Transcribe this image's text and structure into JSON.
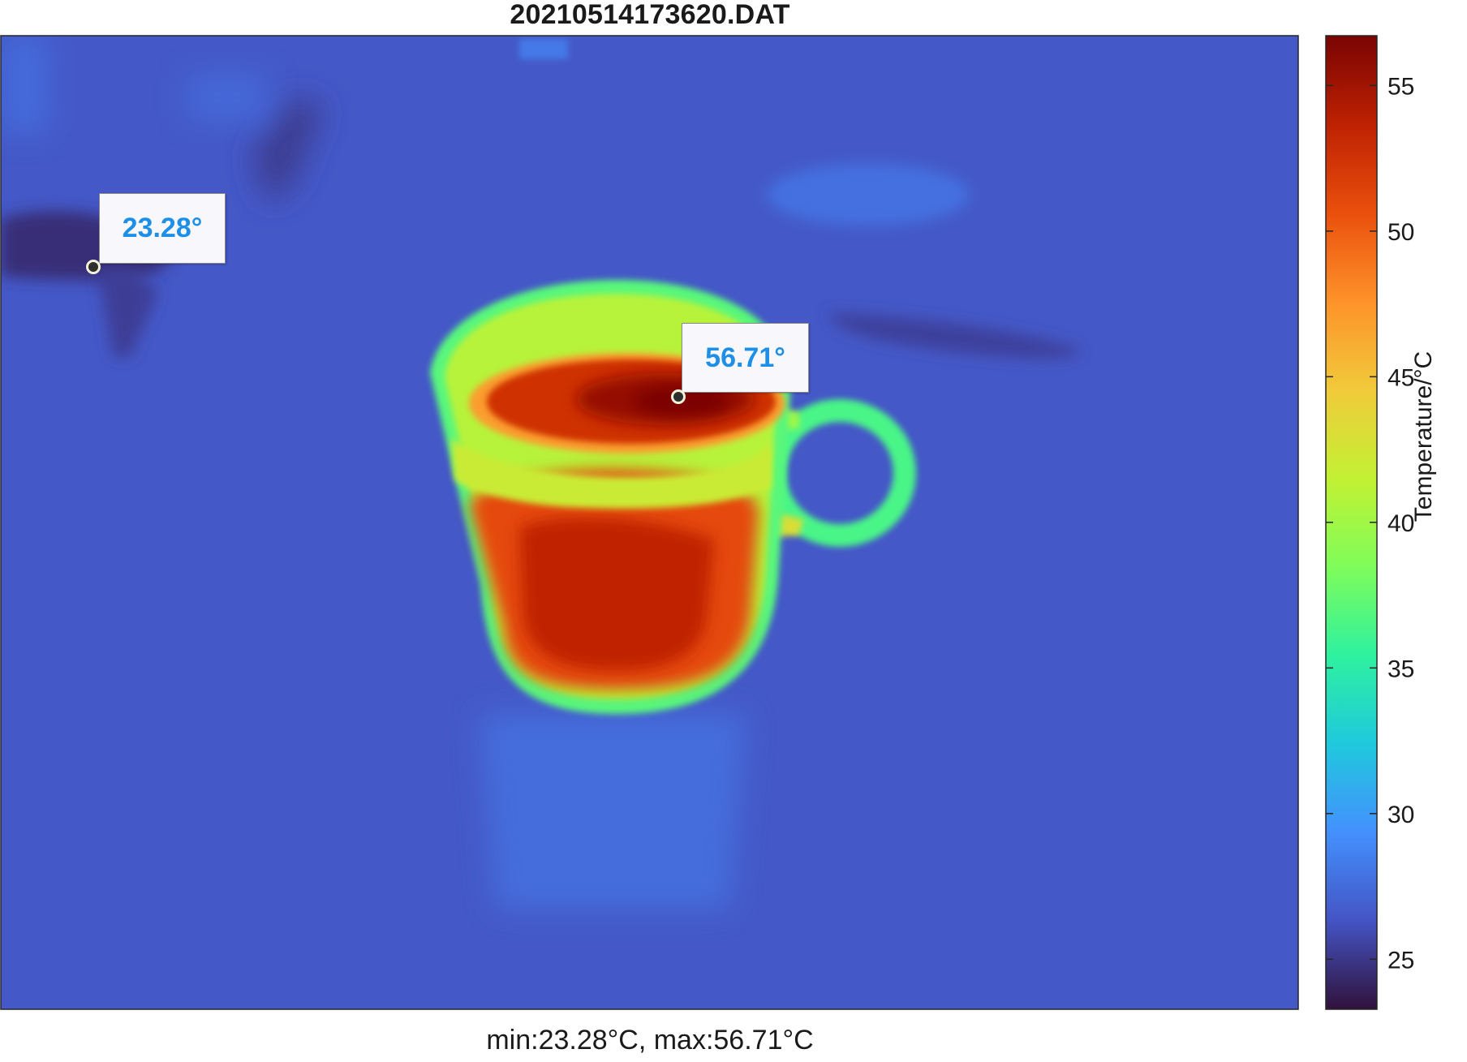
{
  "chart_data": {
    "type": "heatmap",
    "title": "20210514173620.DAT",
    "xlabel": "min:23.28°C, max:56.71°C",
    "colorbar": {
      "label": "Temperature/°C",
      "range": [
        23.28,
        56.71
      ],
      "ticks": [
        25,
        30,
        35,
        40,
        45,
        50,
        55
      ],
      "tick_labels": [
        "25",
        "30",
        "35",
        "40",
        "45",
        "50",
        "55"
      ],
      "colormap": "turbo",
      "colors": [
        "#30123b",
        "#4454c4",
        "#4490fe",
        "#1fc9dd",
        "#2ef19f",
        "#7ffd5a",
        "#c3f133",
        "#f1ca3a",
        "#fe922a",
        "#ea4f0d",
        "#be2102",
        "#7a0403"
      ]
    },
    "background_temperature": 26.5,
    "scene": "thermal image of a hot mug of liquid on a table",
    "annotations": [
      {
        "label": "23.28°",
        "value": 23.28,
        "kind": "min"
      },
      {
        "label": "56.71°",
        "value": 56.71,
        "kind": "max"
      }
    ],
    "min": 23.28,
    "max": 56.71,
    "unit": "°C",
    "grid": false
  }
}
